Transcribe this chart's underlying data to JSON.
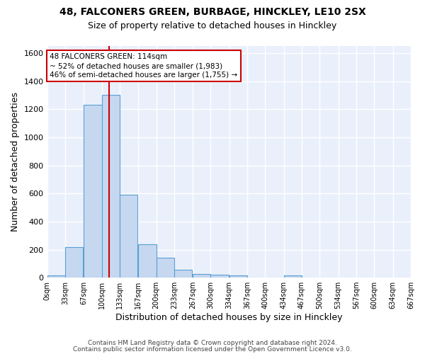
{
  "title_line1": "48, FALCONERS GREEN, BURBAGE, HINCKLEY, LE10 2SX",
  "title_line2": "Size of property relative to detached houses in Hinckley",
  "xlabel": "Distribution of detached houses by size in Hinckley",
  "ylabel": "Number of detached properties",
  "bar_color": "#c5d8f0",
  "bar_edge_color": "#5a9fd4",
  "background_color": "#eaf0fb",
  "grid_color": "#ffffff",
  "bin_edges": [
    0,
    33,
    67,
    100,
    133,
    167,
    200,
    233,
    267,
    300,
    334,
    367,
    400,
    434,
    467,
    500,
    534,
    567,
    600,
    634,
    667
  ],
  "bin_labels": [
    "0sqm",
    "33sqm",
    "67sqm",
    "100sqm",
    "133sqm",
    "167sqm",
    "200sqm",
    "233sqm",
    "267sqm",
    "300sqm",
    "334sqm",
    "367sqm",
    "400sqm",
    "434sqm",
    "467sqm",
    "500sqm",
    "534sqm",
    "567sqm",
    "600sqm",
    "634sqm",
    "667sqm"
  ],
  "bin_counts": [
    15,
    220,
    1230,
    1300,
    590,
    240,
    140,
    55,
    28,
    22,
    15,
    0,
    0,
    15,
    0,
    0,
    0,
    0,
    0,
    0
  ],
  "property_size": 114,
  "vline_color": "#cc0000",
  "annotation_line1": "48 FALCONERS GREEN: 114sqm",
  "annotation_line2": "~ 52% of detached houses are smaller (1,983)",
  "annotation_line3": "46% of semi-detached houses are larger (1,755) →",
  "annotation_box_color": "#ffffff",
  "annotation_border_color": "#cc0000",
  "ylim": [
    0,
    1650
  ],
  "yticks": [
    0,
    200,
    400,
    600,
    800,
    1000,
    1200,
    1400,
    1600
  ],
  "footer_text1": "Contains HM Land Registry data © Crown copyright and database right 2024.",
  "footer_text2": "Contains public sector information licensed under the Open Government Licence v3.0.",
  "title_fontsize": 10,
  "subtitle_fontsize": 9
}
